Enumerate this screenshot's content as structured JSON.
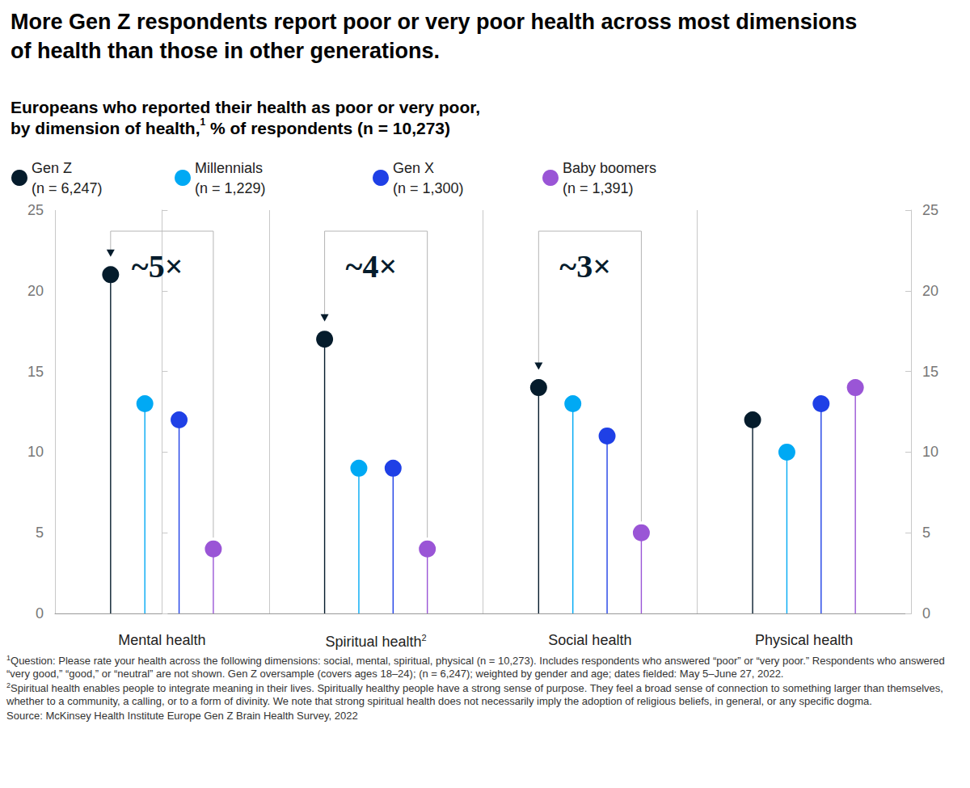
{
  "chart_data": {
    "type": "lollipop",
    "title": "More Gen Z respondents report poor or very poor health across most dimensions of health than those in other generations.",
    "subtitle": {
      "bold_lines": [
        "Europeans who reported their health as poor or very poor,",
        "by dimension of health,"
      ],
      "note_mark": "1",
      "rest": " % of respondents (n = 10,273)"
    },
    "categories": [
      "Mental health",
      "Spiritual health",
      "Social health",
      "Physical health"
    ],
    "category_notes": [
      null,
      "2",
      null,
      null
    ],
    "series": [
      {
        "name": "Gen Z",
        "sample": "(n = 6,247)",
        "color": "#051c2c",
        "values": [
          21,
          17,
          14,
          12
        ]
      },
      {
        "name": "Millennials",
        "sample": "(n = 1,229)",
        "color": "#00a9f4",
        "values": [
          13,
          9,
          13,
          10
        ]
      },
      {
        "name": "Gen X",
        "sample": "(n = 1,300)",
        "color": "#1f40e6",
        "values": [
          12,
          9,
          11,
          13
        ]
      },
      {
        "name": "Baby boomers",
        "sample": "(n = 1,391)",
        "color": "#9a55d6",
        "values": [
          4,
          4,
          5,
          14
        ]
      }
    ],
    "ylim": [
      0,
      25
    ],
    "yticks": [
      0,
      5,
      10,
      15,
      20,
      25
    ],
    "grid": false,
    "legend": "top-left",
    "annotations": [
      {
        "category": "Mental health",
        "from": "Gen Z",
        "to": "Baby boomers",
        "text": "~5×"
      },
      {
        "category": "Spiritual health",
        "from": "Gen Z",
        "to": "Baby boomers",
        "text": "~4×"
      },
      {
        "category": "Social health",
        "from": "Gen Z",
        "to": "Baby boomers",
        "text": "~3×"
      }
    ],
    "footnotes": [
      {
        "mark": "1",
        "text": "Question: Please rate your health across the following dimensions: social, mental, spiritual, physical (n = 10,273). Includes respondents who answered “poor” or “very poor.” Respondents who answered “very good,” “good,” or “neutral” are not shown. Gen Z oversample (covers ages 18–24); (n = 6,247); weighted by gender and age; dates fielded: May 5–June 27, 2022."
      },
      {
        "mark": "2",
        "text": "Spiritual health enables people to integrate meaning in their lives. Spiritually healthy people have a strong sense of purpose. They feel a broad sense of connection to something larger than themselves, whether to a community, a calling, or to a form of divinity. We note that strong spiritual health does not necessarily imply the adoption of religious beliefs, in general, or any specific dogma."
      }
    ],
    "source": "Source: McKinsey Health Institute Europe Gen Z Brain Health Survey, 2022"
  }
}
